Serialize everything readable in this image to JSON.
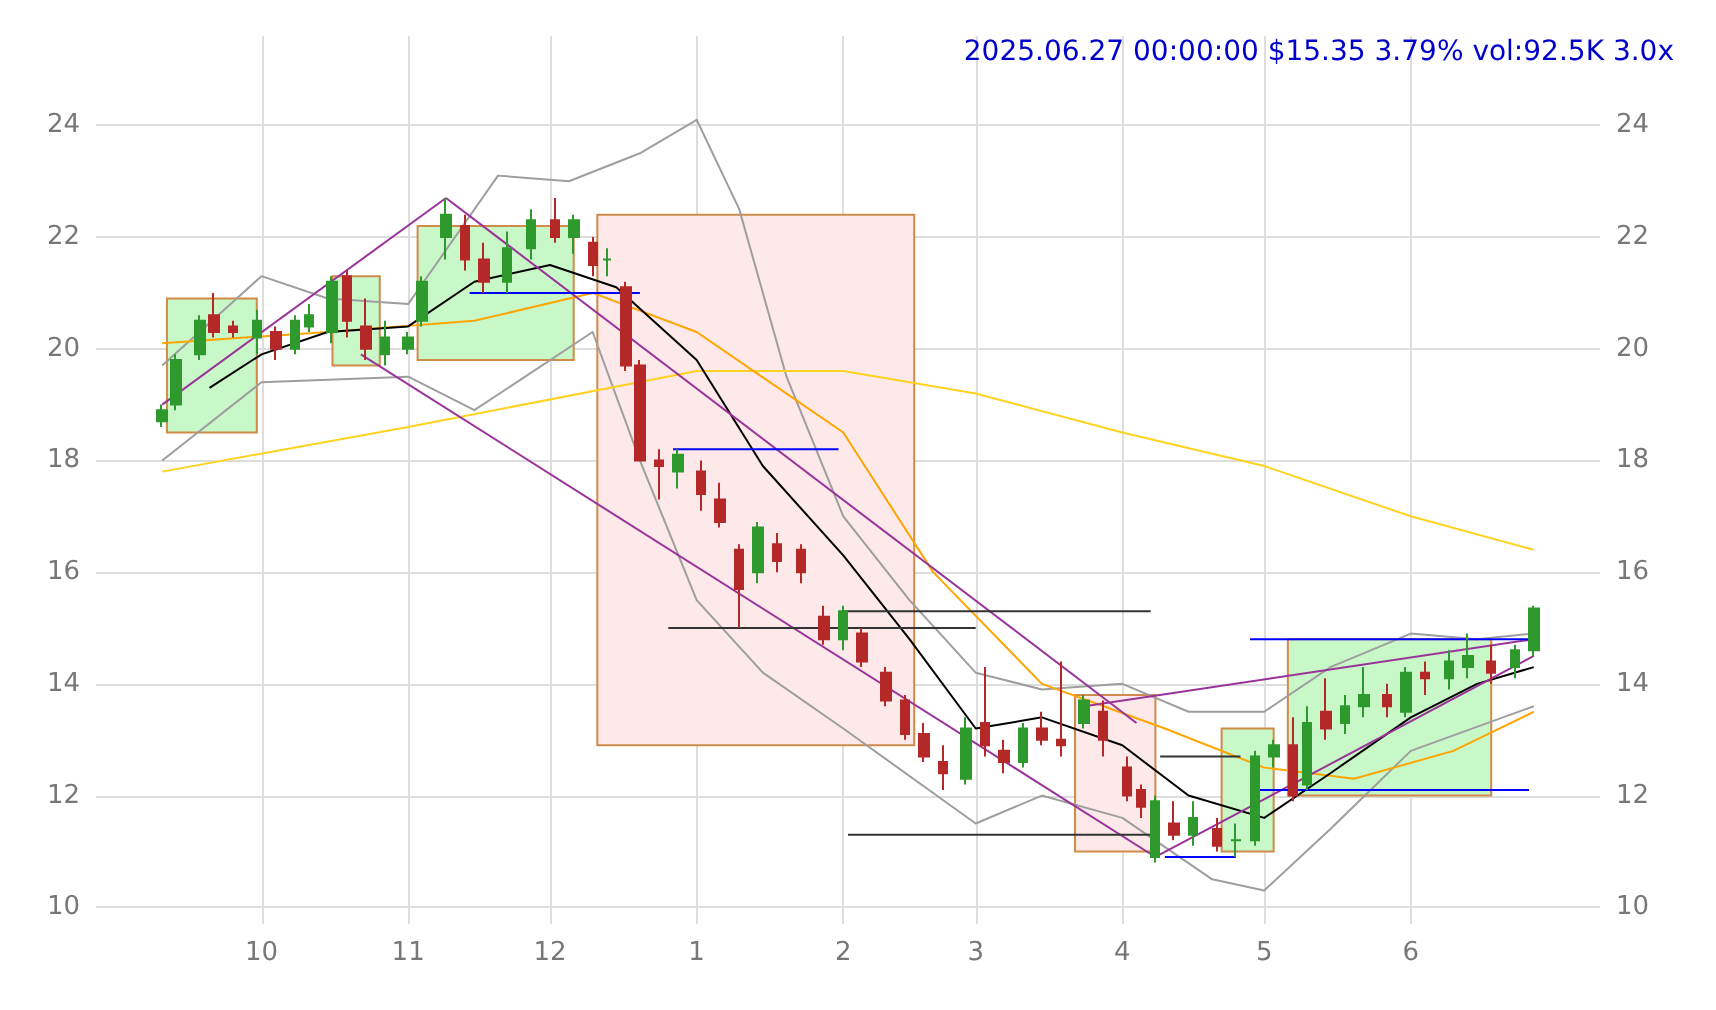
{
  "chart_data": {
    "type": "candlestick",
    "title": "2025.06.27 00:00:00 $15.35 3.79% vol:92.5K 3.0x",
    "xlim": [
      "2024-08-27",
      "2025-07-11"
    ],
    "ylim": [
      9.7,
      25.6
    ],
    "y2lim": [
      9.7,
      25.6
    ],
    "yticks": [
      10,
      12,
      14,
      16,
      18,
      20,
      22,
      24
    ],
    "y2ticks": [
      10,
      12,
      14,
      16,
      18,
      20,
      22,
      24
    ],
    "xticks": [
      {
        "value": "2024-10-01",
        "label": "10"
      },
      {
        "value": "2024-11-01",
        "label": "11"
      },
      {
        "value": "2024-12-01",
        "label": "12"
      },
      {
        "value": "2025-01-01",
        "label": "1"
      },
      {
        "value": "2025-02-01",
        "label": "2"
      },
      {
        "value": "2025-03-01",
        "label": "3"
      },
      {
        "value": "2025-04-01",
        "label": "4"
      },
      {
        "value": "2025-05-01",
        "label": "5"
      },
      {
        "value": "2025-06-01",
        "label": "6"
      }
    ],
    "grid": true,
    "series": [
      {
        "type": "line",
        "color": "#c8f7c8",
        "x": [
          "2024-09-11",
          "2024-09-30"
        ],
        "values": [
          null,
          null
        ],
        "lower": [
          18.5,
          18.5
        ],
        "upper": [
          20.9,
          20.9
        ]
      },
      {
        "type": "line",
        "color": "#c8f7c8",
        "x": [
          "2024-10-16",
          "2024-10-26"
        ],
        "values": [
          null,
          null
        ],
        "lower": [
          19.7,
          19.7
        ],
        "upper": [
          21.3,
          21.3
        ]
      },
      {
        "type": "line",
        "color": "#c8f7c8",
        "x": [
          "2024-11-03",
          "2024-12-06"
        ],
        "values": [
          null,
          null
        ],
        "lower": [
          19.8,
          19.8
        ],
        "upper": [
          22.2,
          22.2
        ]
      },
      {
        "type": "line",
        "color": "#fde9e9",
        "x": [
          "2024-12-11",
          "2025-02-16"
        ],
        "values": [
          null,
          null
        ],
        "lower": [
          12.9,
          12.9
        ],
        "upper": [
          22.4,
          22.4
        ]
      },
      {
        "type": "line",
        "color": "#fde9e9",
        "x": [
          "2025-03-22",
          "2025-04-08"
        ],
        "values": [
          null,
          null
        ],
        "lower": [
          11.0,
          11.0
        ],
        "upper": [
          13.8,
          13.8
        ]
      },
      {
        "type": "line",
        "color": "#c8f7c8",
        "x": [
          "2025-04-22",
          "2025-05-03"
        ],
        "values": [
          null,
          null
        ],
        "lower": [
          11.0,
          11.0
        ],
        "upper": [
          13.2,
          13.2
        ]
      },
      {
        "type": "line",
        "color": "#c8f7c8",
        "x": [
          "2025-05-06",
          "2025-06-18"
        ],
        "values": [
          null,
          null
        ],
        "lower": [
          12.0,
          12.0
        ],
        "upper": [
          14.8,
          14.8
        ]
      },
      {
        "type": "line",
        "color": "#9e9e9e",
        "x": [
          "2024-09-10",
          "2024-10-01",
          "2024-10-15",
          "2024-11-01",
          "2024-11-20",
          "2024-12-05",
          "2024-12-20",
          "2025-01-01",
          "2025-01-10",
          "2025-01-20",
          "2025-02-01",
          "2025-02-15",
          "2025-03-01",
          "2025-03-15",
          "2025-04-01",
          "2025-04-15",
          "2025-05-01",
          "2025-05-15",
          "2025-06-01",
          "2025-06-15",
          "2025-06-27"
        ],
        "values": [
          19.7,
          21.3,
          20.9,
          20.8,
          23.1,
          23.0,
          23.5,
          24.1,
          22.5,
          19.5,
          17.0,
          15.5,
          14.2,
          13.9,
          14.0,
          13.5,
          13.5,
          14.3,
          14.9,
          14.8,
          14.9
        ]
      },
      {
        "type": "line",
        "color": "#9e9e9e",
        "x": [
          "2024-09-10",
          "2024-10-01",
          "2024-11-01",
          "2024-11-15",
          "2024-12-10",
          "2024-12-20",
          "2025-01-01",
          "2025-01-15",
          "2025-02-01",
          "2025-03-01",
          "2025-03-15",
          "2025-04-01",
          "2025-04-20",
          "2025-05-01",
          "2025-05-15",
          "2025-06-01",
          "2025-06-27"
        ],
        "values": [
          18.0,
          19.4,
          19.5,
          18.9,
          20.3,
          18.0,
          15.5,
          14.2,
          13.2,
          11.5,
          12.0,
          11.6,
          10.5,
          10.3,
          11.4,
          12.8,
          13.6
        ]
      },
      {
        "type": "line",
        "color": "#ffd21f",
        "x": [
          "2024-09-10",
          "2024-11-01",
          "2025-01-01",
          "2025-02-01",
          "2025-03-01",
          "2025-04-01",
          "2025-05-01",
          "2025-06-01",
          "2025-06-27"
        ],
        "values": [
          17.8,
          18.6,
          19.6,
          19.6,
          19.2,
          18.5,
          17.9,
          17.0,
          16.4
        ]
      },
      {
        "type": "line",
        "color": "#ffa500",
        "x": [
          "2024-09-10",
          "2024-10-15",
          "2024-11-15",
          "2024-12-10",
          "2025-01-01",
          "2025-02-01",
          "2025-02-20",
          "2025-03-15",
          "2025-04-10",
          "2025-05-01",
          "2025-05-20",
          "2025-06-10",
          "2025-06-27"
        ],
        "values": [
          20.1,
          20.3,
          20.5,
          21.0,
          20.3,
          18.5,
          16.0,
          14.0,
          13.2,
          12.5,
          12.3,
          12.8,
          13.5
        ]
      },
      {
        "type": "line",
        "color": "#000000",
        "x": [
          "2024-09-20",
          "2024-10-01",
          "2024-10-15",
          "2024-11-01",
          "2024-11-15",
          "2024-12-01",
          "2024-12-15",
          "2025-01-01",
          "2025-01-15",
          "2025-02-01",
          "2025-02-15",
          "2025-03-01",
          "2025-03-15",
          "2025-04-01",
          "2025-04-15",
          "2025-05-01",
          "2025-05-15",
          "2025-06-01",
          "2025-06-15",
          "2025-06-27"
        ],
        "values": [
          19.3,
          19.9,
          20.3,
          20.4,
          21.2,
          21.5,
          21.1,
          19.8,
          17.9,
          16.3,
          14.8,
          13.2,
          13.4,
          12.9,
          12.0,
          11.6,
          12.4,
          13.4,
          14.0,
          14.3
        ]
      },
      {
        "type": "line",
        "color": "#993399",
        "x": [
          "2024-09-10",
          "2024-11-09"
        ],
        "values": [
          19.0,
          22.7
        ]
      },
      {
        "type": "line",
        "color": "#993399",
        "x": [
          "2024-11-09",
          "2025-04-04"
        ],
        "values": [
          22.7,
          13.3
        ]
      },
      {
        "type": "line",
        "color": "#993399",
        "x": [
          "2024-10-22",
          "2025-04-08"
        ],
        "values": [
          19.9,
          10.9
        ]
      },
      {
        "type": "line",
        "color": "#993399",
        "x": [
          "2025-04-08",
          "2025-06-27"
        ],
        "values": [
          10.9,
          14.5
        ]
      },
      {
        "type": "line",
        "color": "#993399",
        "x": [
          "2025-03-24",
          "2025-06-27"
        ],
        "values": [
          13.6,
          14.8
        ]
      },
      {
        "type": "line",
        "color": "#0000ff",
        "x": [
          "2024-11-14",
          "2024-12-20"
        ],
        "values": [
          21.0,
          21.0
        ]
      },
      {
        "type": "line",
        "color": "#0000ff",
        "x": [
          "2024-12-27",
          "2025-01-31"
        ],
        "values": [
          18.2,
          18.2
        ]
      },
      {
        "type": "line",
        "color": "#0000ff",
        "x": [
          "2025-04-29",
          "2025-06-26"
        ],
        "values": [
          12.1,
          12.1
        ]
      },
      {
        "type": "line",
        "color": "#0000ff",
        "x": [
          "2025-04-28",
          "2025-06-26"
        ],
        "values": [
          14.8,
          14.8
        ]
      },
      {
        "type": "line",
        "color": "#0000ff",
        "x": [
          "2025-04-10",
          "2025-04-25"
        ],
        "values": [
          10.9,
          10.9
        ]
      },
      {
        "type": "line",
        "color": "#333333",
        "x": [
          "2024-12-26",
          "2025-03-01"
        ],
        "values": [
          15.0,
          15.0
        ]
      },
      {
        "type": "line",
        "color": "#333333",
        "x": [
          "2025-02-01",
          "2025-04-07"
        ],
        "values": [
          15.3,
          15.3
        ]
      },
      {
        "type": "line",
        "color": "#333333",
        "x": [
          "2025-02-02",
          "2025-04-08"
        ],
        "values": [
          11.3,
          11.3
        ]
      },
      {
        "type": "line",
        "color": "#333333",
        "x": [
          "2025-04-09",
          "2025-04-26"
        ],
        "values": [
          12.7,
          12.7
        ]
      },
      {
        "x": [
          "2024-09-10",
          "2024-09-13",
          "2024-09-18",
          "2024-09-21",
          "2024-09-25",
          "2024-09-30",
          "2024-10-04",
          "2024-10-08",
          "2024-10-11",
          "2024-10-16",
          "2024-10-19",
          "2024-10-23",
          "2024-10-27",
          "2024-11-01",
          "2024-11-04",
          "2024-11-09",
          "2024-11-13",
          "2024-11-17",
          "2024-11-22",
          "2024-11-27",
          "2024-12-02",
          "2024-12-06",
          "2024-12-10",
          "2024-12-13",
          "2024-12-17",
          "2024-12-20",
          "2024-12-24",
          "2024-12-28",
          "2025-01-02",
          "2025-01-06",
          "2025-01-10",
          "2025-01-14",
          "2025-01-18",
          "2025-01-23",
          "2025-01-28",
          "2025-02-01",
          "2025-02-05",
          "2025-02-10",
          "2025-02-14",
          "2025-02-18",
          "2025-02-22",
          "2025-02-27",
          "2025-03-03",
          "2025-03-07",
          "2025-03-11",
          "2025-03-15",
          "2025-03-19",
          "2025-03-24",
          "2025-03-28",
          "2025-04-02",
          "2025-04-05",
          "2025-04-08",
          "2025-04-12",
          "2025-04-16",
          "2025-04-21",
          "2025-04-25",
          "2025-04-29",
          "2025-05-03",
          "2025-05-07",
          "2025-05-10",
          "2025-05-14",
          "2025-05-18",
          "2025-05-22",
          "2025-05-27",
          "2025-05-31",
          "2025-06-04",
          "2025-06-09",
          "2025-06-13",
          "2025-06-18",
          "2025-06-23",
          "2025-06-27"
        ],
        "ohlc": [
          [
            18.7,
            19.0,
            18.6,
            18.9
          ],
          [
            19.0,
            19.9,
            18.9,
            19.8
          ],
          [
            19.9,
            20.6,
            19.8,
            20.5
          ],
          [
            20.6,
            21.0,
            20.2,
            20.3
          ],
          [
            20.4,
            20.5,
            20.2,
            20.3
          ],
          [
            20.2,
            20.7,
            19.9,
            20.5
          ],
          [
            20.3,
            20.4,
            19.8,
            20.0
          ],
          [
            20.0,
            20.6,
            19.9,
            20.5
          ],
          [
            20.4,
            20.8,
            20.3,
            20.6
          ],
          [
            20.3,
            21.3,
            20.1,
            21.2
          ],
          [
            21.3,
            21.4,
            20.2,
            20.5
          ],
          [
            20.4,
            20.9,
            19.8,
            20.0
          ],
          [
            19.9,
            20.5,
            19.7,
            20.2
          ],
          [
            20.0,
            20.3,
            19.9,
            20.2
          ],
          [
            20.5,
            21.3,
            20.4,
            21.2
          ],
          [
            22.0,
            22.7,
            21.6,
            22.4
          ],
          [
            22.2,
            22.4,
            21.4,
            21.6
          ],
          [
            21.6,
            21.9,
            21.0,
            21.2
          ],
          [
            21.2,
            22.1,
            21.0,
            21.8
          ],
          [
            21.8,
            22.5,
            21.6,
            22.3
          ],
          [
            22.3,
            22.7,
            21.9,
            22.0
          ],
          [
            22.0,
            22.4,
            21.7,
            22.3
          ],
          [
            21.9,
            22.0,
            21.3,
            21.5
          ],
          [
            21.6,
            21.8,
            21.3,
            21.6
          ],
          [
            21.1,
            21.2,
            19.6,
            19.7
          ],
          [
            19.7,
            19.8,
            18.0,
            18.0
          ],
          [
            18.0,
            18.2,
            17.3,
            17.9
          ],
          [
            17.8,
            18.2,
            17.5,
            18.1
          ],
          [
            17.8,
            18.0,
            17.1,
            17.4
          ],
          [
            17.3,
            17.6,
            16.8,
            16.9
          ],
          [
            16.4,
            16.5,
            15.0,
            15.7
          ],
          [
            16.0,
            16.9,
            15.8,
            16.8
          ],
          [
            16.5,
            16.7,
            16.0,
            16.2
          ],
          [
            16.4,
            16.5,
            15.8,
            16.0
          ],
          [
            15.2,
            15.4,
            14.7,
            14.8
          ],
          [
            14.8,
            15.4,
            14.6,
            15.3
          ],
          [
            14.9,
            15.0,
            14.3,
            14.4
          ],
          [
            14.2,
            14.3,
            13.6,
            13.7
          ],
          [
            13.7,
            13.8,
            13.0,
            13.1
          ],
          [
            13.1,
            13.3,
            12.6,
            12.7
          ],
          [
            12.6,
            12.9,
            12.1,
            12.4
          ],
          [
            12.3,
            13.4,
            12.2,
            13.2
          ],
          [
            13.3,
            14.3,
            12.7,
            12.9
          ],
          [
            12.8,
            13.0,
            12.4,
            12.6
          ],
          [
            12.6,
            13.3,
            12.5,
            13.2
          ],
          [
            13.2,
            13.5,
            12.9,
            13.0
          ],
          [
            13.0,
            14.4,
            12.7,
            12.9
          ],
          [
            13.3,
            13.8,
            13.2,
            13.7
          ],
          [
            13.5,
            13.7,
            12.7,
            13.0
          ],
          [
            12.5,
            12.7,
            11.9,
            12.0
          ],
          [
            12.1,
            12.2,
            11.6,
            11.8
          ],
          [
            10.9,
            12.0,
            10.8,
            11.9
          ],
          [
            11.5,
            11.9,
            11.2,
            11.3
          ],
          [
            11.3,
            11.9,
            11.1,
            11.6
          ],
          [
            11.4,
            11.6,
            11.0,
            11.1
          ],
          [
            11.2,
            11.5,
            10.9,
            11.2
          ],
          [
            11.2,
            12.8,
            11.1,
            12.7
          ],
          [
            12.7,
            13.0,
            12.5,
            12.9
          ],
          [
            12.9,
            13.4,
            11.9,
            12.0
          ],
          [
            12.2,
            13.6,
            12.1,
            13.3
          ],
          [
            13.5,
            14.1,
            13.0,
            13.2
          ],
          [
            13.3,
            13.8,
            13.1,
            13.6
          ],
          [
            13.6,
            14.3,
            13.4,
            13.8
          ],
          [
            13.8,
            14.0,
            13.4,
            13.6
          ],
          [
            13.5,
            14.3,
            13.4,
            14.2
          ],
          [
            14.2,
            14.4,
            13.8,
            14.1
          ],
          [
            14.1,
            14.6,
            13.9,
            14.4
          ],
          [
            14.3,
            14.9,
            14.1,
            14.5
          ],
          [
            14.4,
            14.7,
            14.0,
            14.2
          ],
          [
            14.3,
            14.7,
            14.1,
            14.6
          ],
          [
            14.6,
            15.4,
            14.5,
            15.35
          ]
        ]
      }
    ]
  }
}
